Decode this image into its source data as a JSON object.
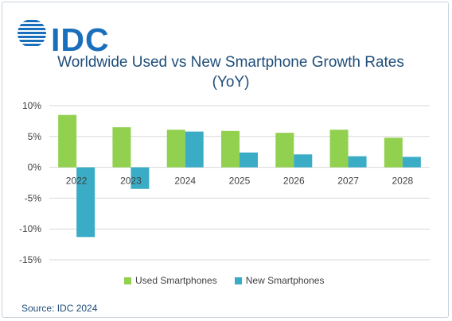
{
  "logo": {
    "text": "IDC",
    "icon": "idc-globe-icon",
    "color": "#1a6fbc"
  },
  "chart_data": {
    "type": "bar",
    "title": "Worldwide Used vs New Smartphone Growth Rates (YoY)",
    "categories": [
      "2022",
      "2023",
      "2024",
      "2025",
      "2026",
      "2027",
      "2028"
    ],
    "series": [
      {
        "name": "Used Smartphones",
        "color": "#92d050",
        "values": [
          8.5,
          6.5,
          6.1,
          5.9,
          5.6,
          6.1,
          4.8
        ]
      },
      {
        "name": "New Smartphones",
        "color": "#3aacc6",
        "values": [
          -11.3,
          -3.5,
          5.8,
          2.4,
          2.1,
          1.8,
          1.7
        ]
      }
    ],
    "ylim": [
      -15,
      10
    ],
    "yticks": [
      10,
      5,
      0,
      -5,
      -10,
      -15
    ],
    "ytick_labels": [
      "10%",
      "5%",
      "0%",
      "-5%",
      "-10%",
      "-15%"
    ],
    "xlabel": "",
    "ylabel": "",
    "grid": true,
    "legend_position": "bottom"
  },
  "source": "Source: IDC 2024"
}
